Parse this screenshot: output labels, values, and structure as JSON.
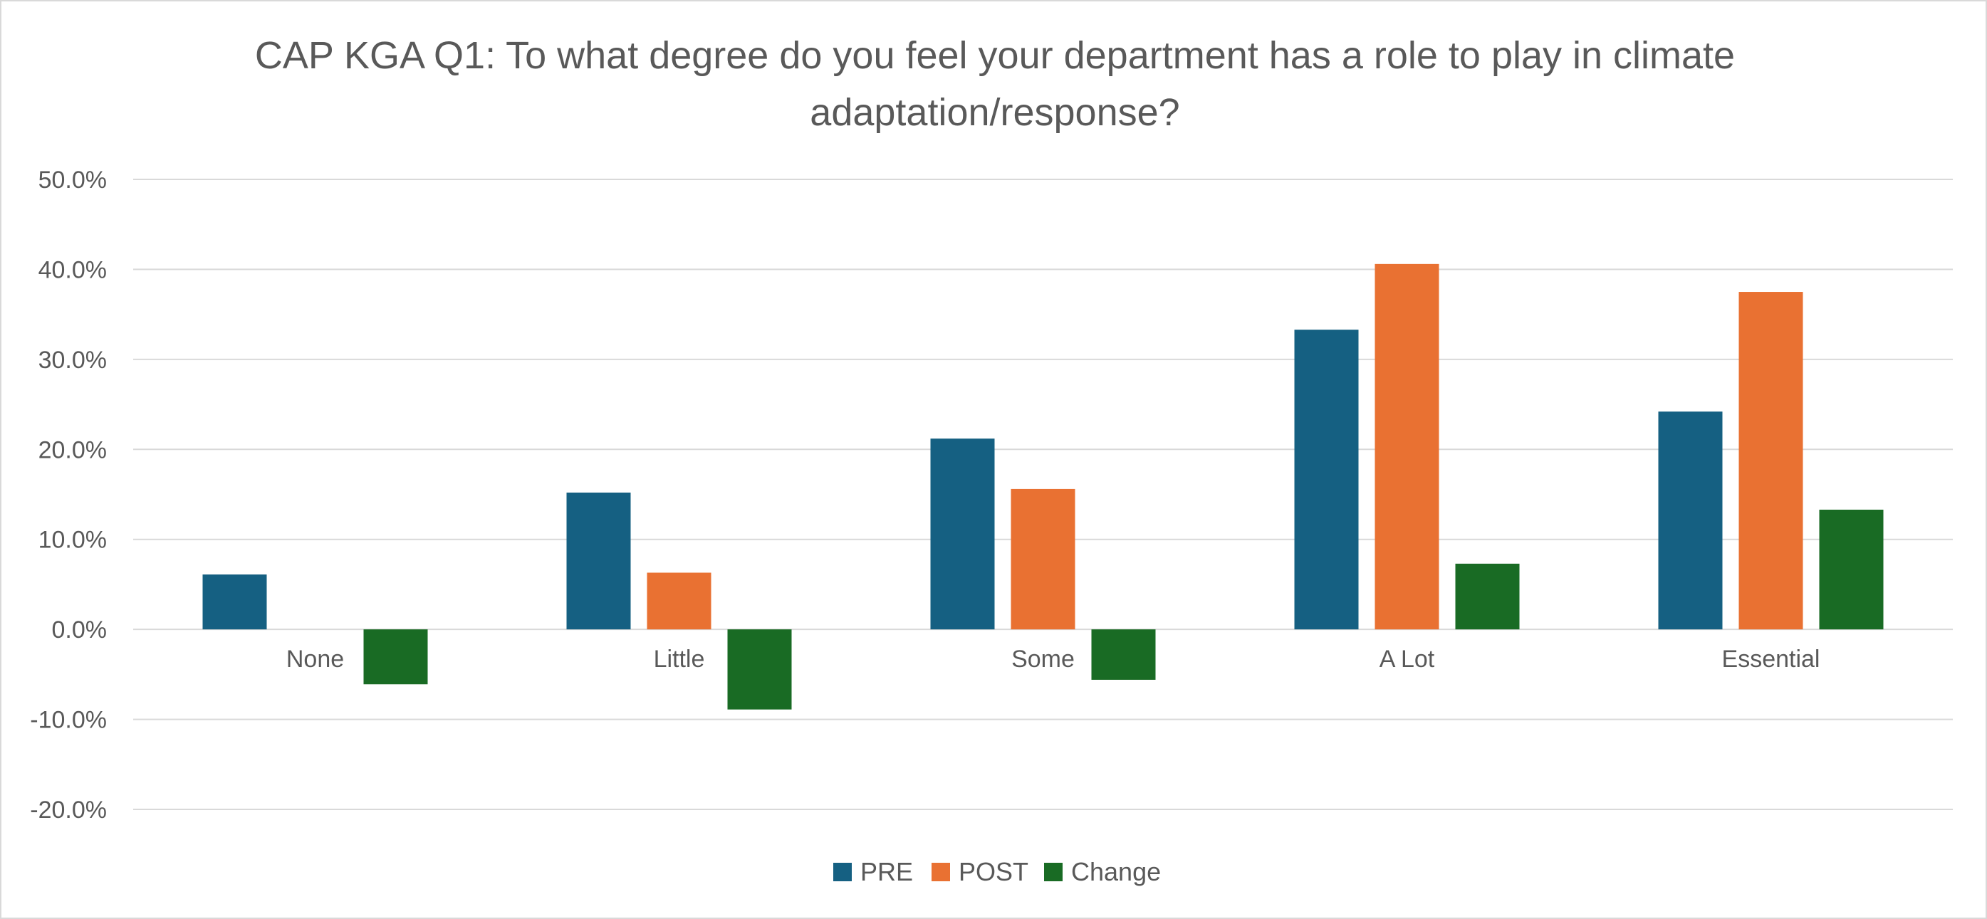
{
  "chart_data": {
    "type": "bar",
    "title": "CAP KGA Q1: To what degree do you feel your department has a role to play in climate adaptation/response?",
    "categories": [
      "None",
      "Little",
      "Some",
      "A Lot",
      "Essential"
    ],
    "series": [
      {
        "name": "PRE",
        "color": "#156082",
        "values": [
          6.1,
          15.2,
          21.2,
          33.3,
          24.2
        ]
      },
      {
        "name": "POST",
        "color": "#E97132",
        "values": [
          0.0,
          6.3,
          15.6,
          40.6,
          37.5
        ]
      },
      {
        "name": "Change",
        "color": "#196B24",
        "values": [
          -6.1,
          -8.9,
          -5.6,
          7.3,
          13.3
        ]
      }
    ],
    "ylim": [
      -20,
      50
    ],
    "yticks": [
      50,
      40,
      30,
      20,
      10,
      0,
      -10,
      -20
    ],
    "ytick_labels": [
      "50.0%",
      "40.0%",
      "30.0%",
      "20.0%",
      "10.0%",
      "0.0%",
      "-10.0%",
      "-20.0%"
    ],
    "grid": true,
    "legend_position": "bottom",
    "gridline_color": "#d9d9d9",
    "text_color": "#595959"
  }
}
